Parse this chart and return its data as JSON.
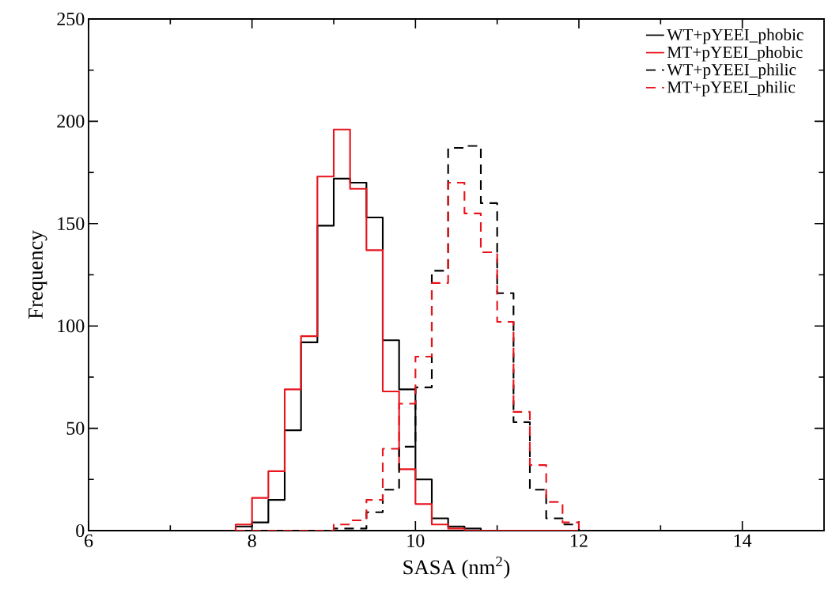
{
  "chart_data": {
    "type": "histogram",
    "xlabel": "SASA (nm$^{2}$)",
    "ylabel": "Frequency",
    "bins": [
      7.8,
      8.0,
      8.2,
      8.4,
      8.6,
      8.8,
      9.0,
      9.2,
      9.4,
      9.6,
      9.8,
      10.0,
      10.2,
      10.4,
      10.6,
      10.8,
      11.0,
      11.2,
      11.4,
      11.6,
      11.8,
      12.0
    ],
    "series": [
      {
        "name": "WT+pYEEI_phobic",
        "color": "#000000",
        "line_style": "solid",
        "values": [
          2,
          4,
          15,
          49,
          92,
          149,
          172,
          170,
          153,
          93,
          69,
          25,
          6,
          2,
          1,
          0,
          0,
          0,
          0,
          0,
          0
        ]
      },
      {
        "name": "MT+pYEEI_phobic",
        "color": "#e8141c",
        "line_style": "solid",
        "values": [
          3,
          16,
          29,
          69,
          95,
          173,
          196,
          167,
          137,
          68,
          30,
          13,
          3,
          1,
          0,
          0,
          0,
          0,
          0,
          0,
          0
        ]
      },
      {
        "name": "WT+pYEEI_philic",
        "color": "#000000",
        "line_style": "dashed",
        "values": [
          0,
          0,
          0,
          0,
          0,
          0,
          1,
          1,
          9,
          20,
          41,
          70,
          127,
          187,
          188,
          160,
          116,
          53,
          20,
          6,
          3
        ]
      },
      {
        "name": "MT+pYEEI_philic",
        "color": "#e8141c",
        "line_style": "dashed",
        "values": [
          0,
          0,
          0,
          0,
          0,
          0,
          3,
          5,
          15,
          40,
          62,
          85,
          121,
          170,
          155,
          136,
          102,
          58,
          32,
          14,
          4
        ]
      }
    ],
    "xlim": [
      6,
      15
    ],
    "ylim": [
      0,
      250
    ],
    "xticks": [
      6,
      8,
      10,
      12,
      14
    ],
    "yticks": [
      0,
      50,
      100,
      150,
      200,
      250
    ],
    "legend": "top right"
  }
}
